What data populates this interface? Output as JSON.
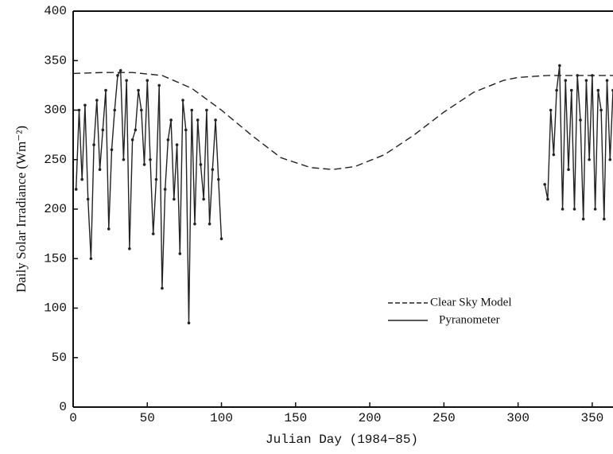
{
  "chart_data": {
    "type": "line",
    "x_label": "Julian Day    (1984−85)",
    "y_label": "Daily Solar Irradiance    (Wm⁻²)",
    "xlim": [
      0,
      364
    ],
    "ylim": [
      0,
      400
    ],
    "xticks": [
      0,
      50,
      100,
      150,
      200,
      250,
      300,
      350
    ],
    "yticks": [
      0,
      50,
      100,
      150,
      200,
      250,
      300,
      350,
      400
    ],
    "series": [
      {
        "name": "Clear Sky Model",
        "color": "#222",
        "style": "dashed",
        "x": [
          0,
          20,
          40,
          60,
          80,
          100,
          120,
          140,
          160,
          175,
          190,
          210,
          230,
          250,
          270,
          290,
          300,
          320,
          340,
          364
        ],
        "values": [
          337,
          338,
          338,
          335,
          322,
          300,
          275,
          252,
          242,
          240,
          243,
          255,
          275,
          298,
          318,
          330,
          333,
          335,
          335,
          335
        ]
      },
      {
        "name": "Pyranometer",
        "color": "#222",
        "style": "solid",
        "x": [
          2,
          4,
          6,
          8,
          10,
          12,
          14,
          16,
          18,
          20,
          22,
          24,
          26,
          28,
          30,
          32,
          34,
          36,
          38,
          40,
          42,
          44,
          46,
          48,
          50,
          52,
          54,
          56,
          58,
          60,
          62,
          64,
          66,
          68,
          70,
          72,
          74,
          76,
          78,
          80,
          82,
          84,
          86,
          88,
          90,
          92,
          94,
          96,
          98,
          100,
          null,
          318,
          320,
          322,
          324,
          326,
          328,
          330,
          332,
          334,
          336,
          338,
          340,
          342,
          344,
          346,
          348,
          350,
          352,
          354,
          356,
          358,
          360,
          362,
          364
        ],
        "values": [
          220,
          300,
          230,
          305,
          210,
          150,
          265,
          310,
          240,
          280,
          320,
          180,
          260,
          300,
          335,
          340,
          250,
          330,
          160,
          270,
          280,
          320,
          300,
          245,
          330,
          250,
          175,
          230,
          325,
          120,
          220,
          270,
          290,
          210,
          265,
          155,
          310,
          280,
          85,
          300,
          185,
          290,
          245,
          210,
          300,
          185,
          240,
          290,
          230,
          170,
          null,
          225,
          210,
          300,
          255,
          320,
          345,
          200,
          330,
          240,
          320,
          200,
          335,
          290,
          190,
          330,
          250,
          335,
          200,
          320,
          300,
          190,
          330,
          250,
          320
        ]
      }
    ]
  }
}
